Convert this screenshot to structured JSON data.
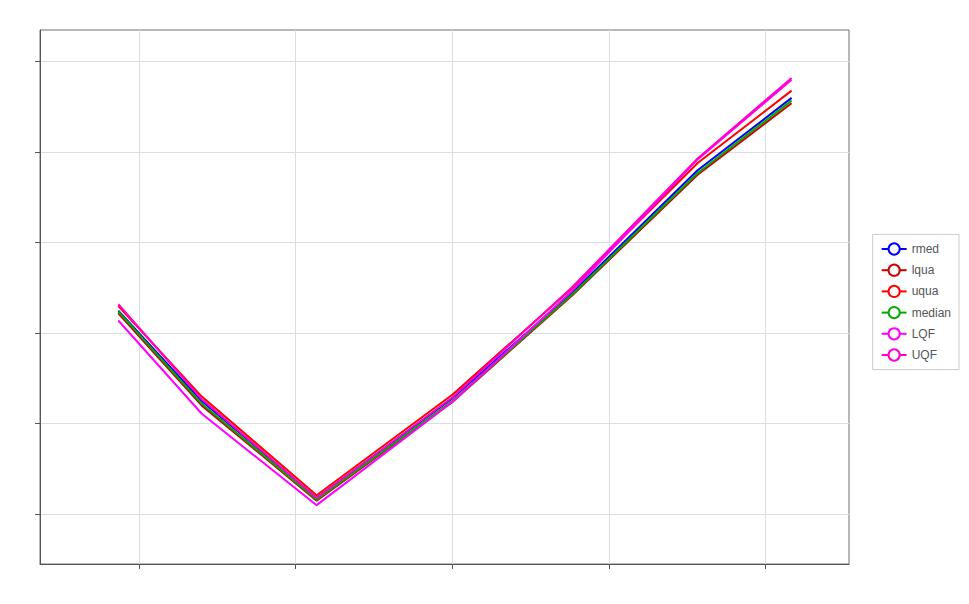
{
  "chart_data": {
    "type": "line",
    "x": [
      130,
      210,
      320,
      450,
      565,
      685,
      775
    ],
    "series": [
      {
        "name": "rmed",
        "color": "#0000ff",
        "values": [
          0.375,
          0.275,
          0.168,
          0.278,
          0.395,
          0.53,
          0.61
        ]
      },
      {
        "name": "lqua",
        "color": "#cc0000",
        "values": [
          0.372,
          0.27,
          0.165,
          0.274,
          0.392,
          0.525,
          0.604
        ]
      },
      {
        "name": "uqua",
        "color": "#ff0000",
        "values": [
          0.38,
          0.28,
          0.171,
          0.282,
          0.4,
          0.538,
          0.618
        ]
      },
      {
        "name": "median",
        "color": "#00aa00",
        "values": [
          0.374,
          0.272,
          0.166,
          0.275,
          0.393,
          0.527,
          0.607
        ]
      },
      {
        "name": "LQF",
        "color": "#ff00ff",
        "values": [
          0.364,
          0.261,
          0.16,
          0.274,
          0.397,
          0.542,
          0.63
        ]
      },
      {
        "name": "UQF",
        "color": "#ff00cc",
        "values": [
          0.382,
          0.277,
          0.168,
          0.279,
          0.401,
          0.543,
          0.632
        ]
      }
    ],
    "xlim": [
      55,
      830
    ],
    "ylim": [
      0.095,
      0.685
    ],
    "xticks": [
      150,
      300,
      450,
      600,
      750
    ],
    "yticks": [
      0.15,
      0.25,
      0.35,
      0.45,
      0.55,
      0.65
    ],
    "grid": true,
    "legend": "right",
    "tick_labels": false
  }
}
